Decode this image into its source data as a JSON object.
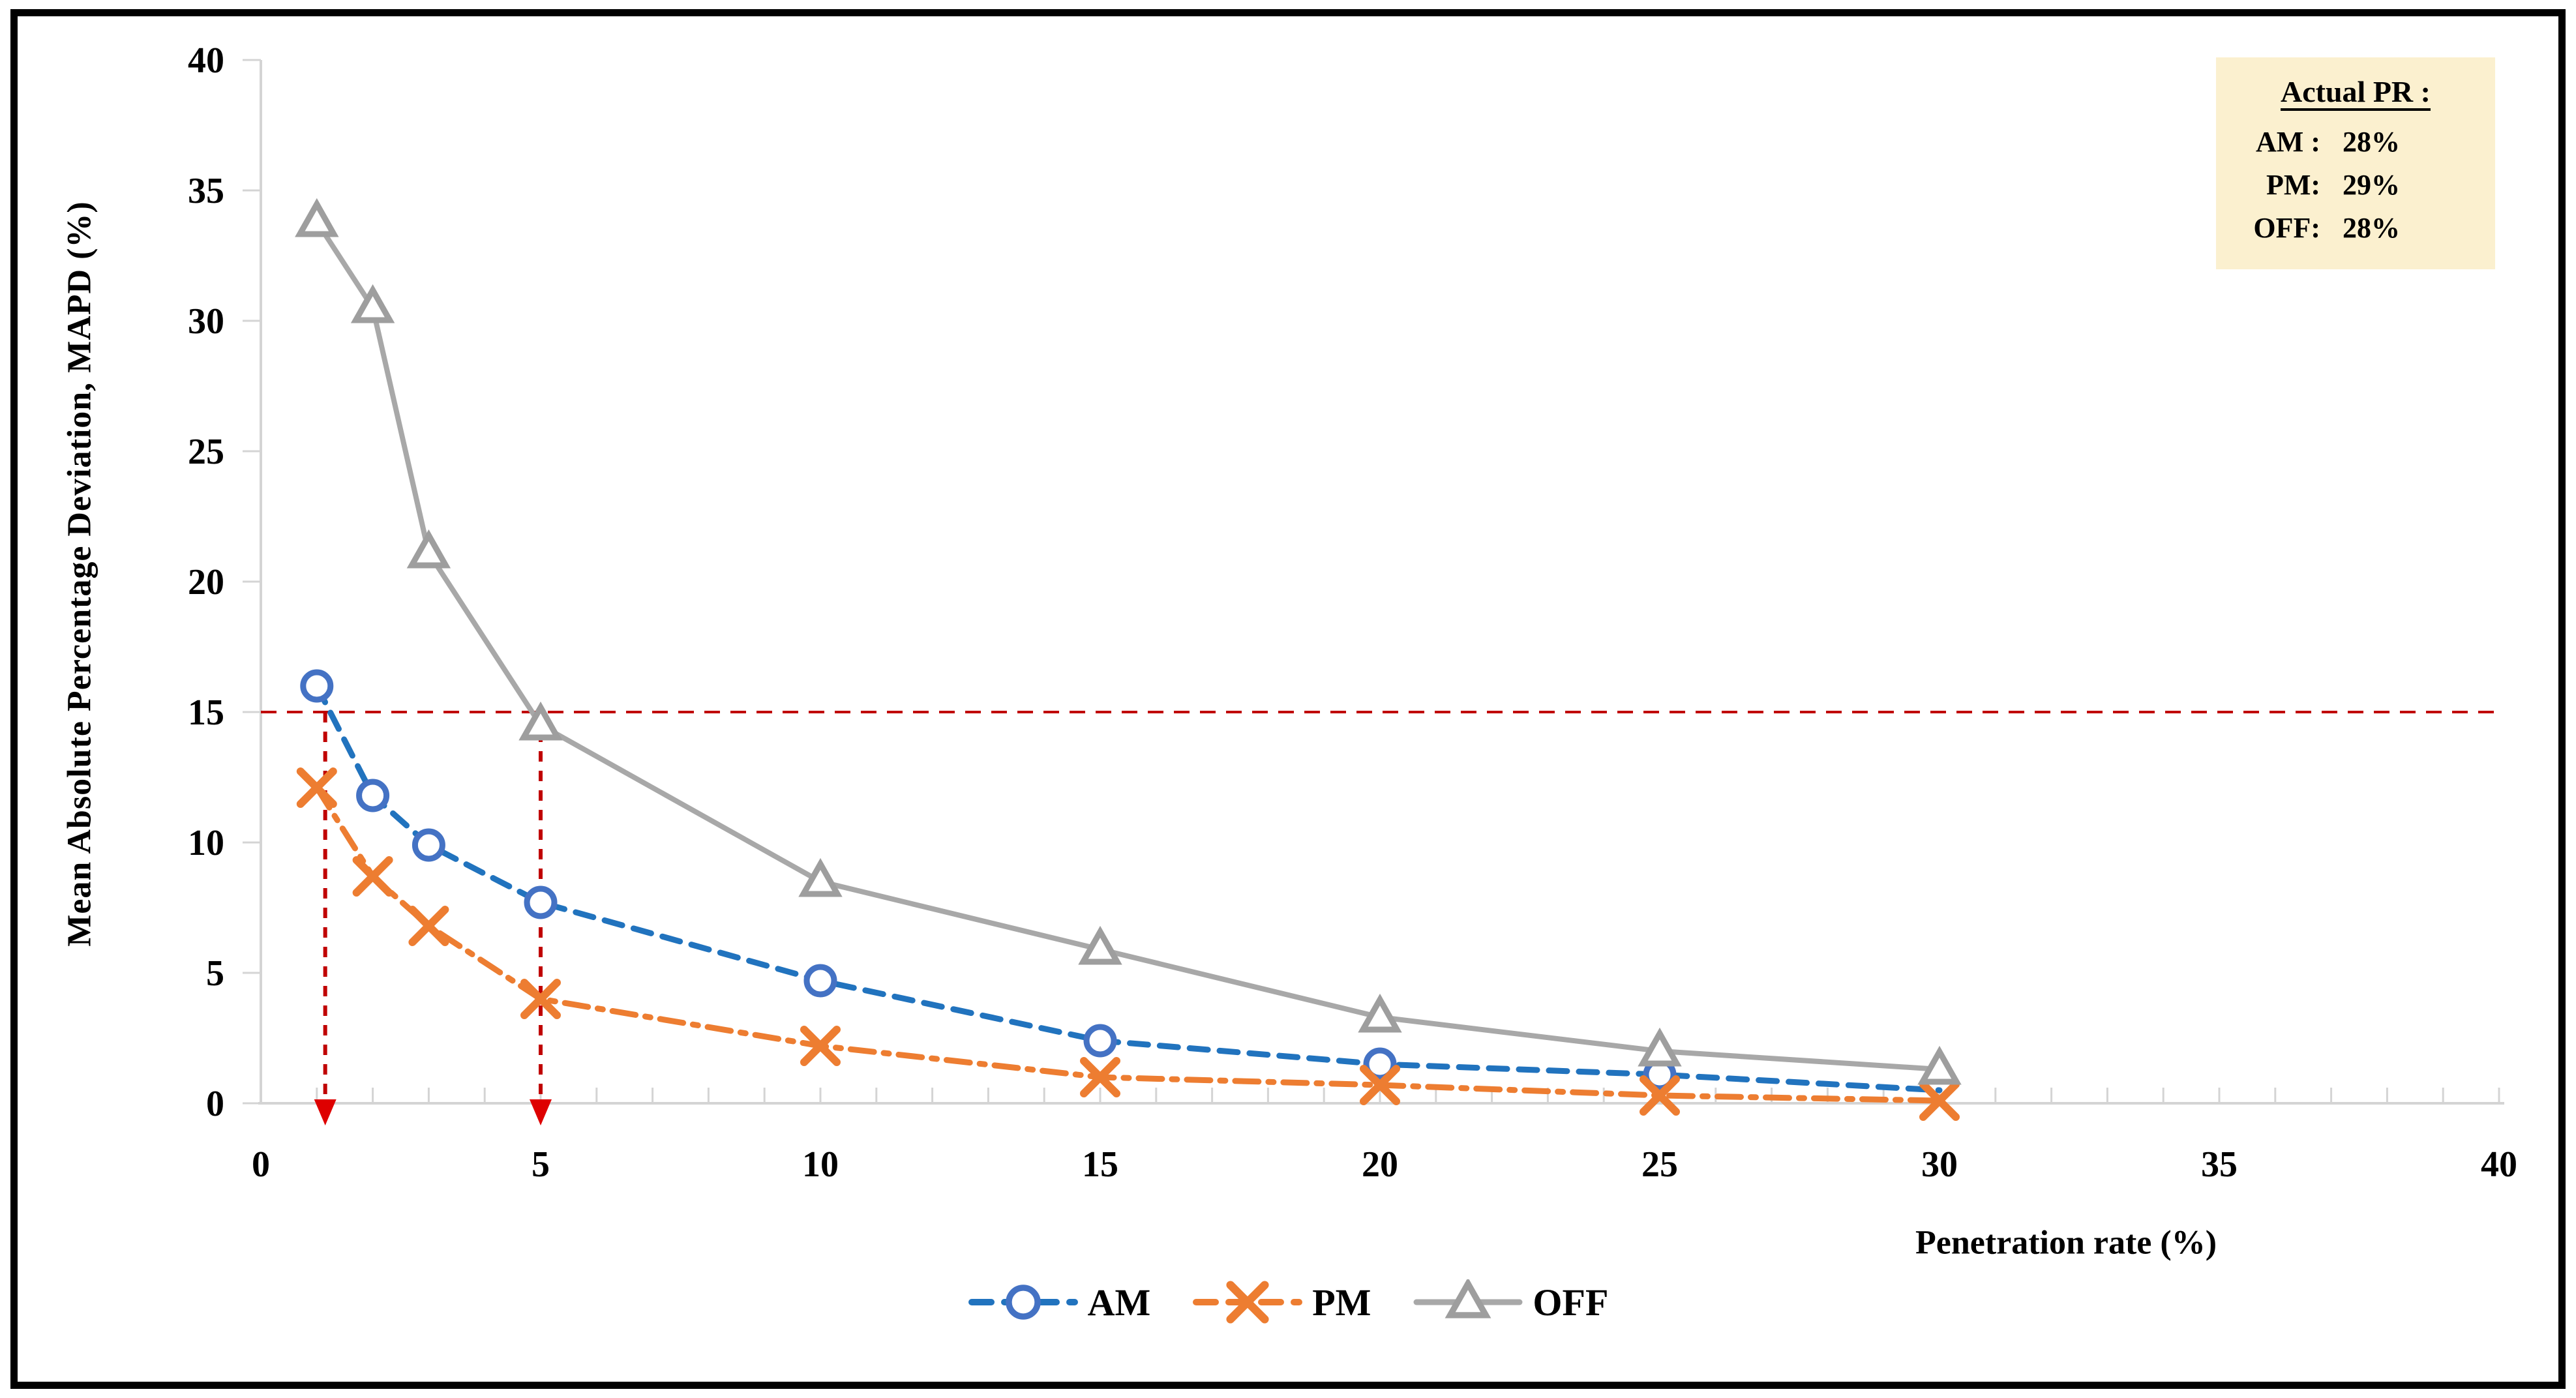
{
  "chart_data": {
    "type": "line",
    "title": "",
    "xlabel": "Penetration rate (%)",
    "ylabel": "Mean Absolute Percentage Deviation, MAPD (%)",
    "xlim": [
      0,
      40
    ],
    "ylim": [
      0,
      40
    ],
    "x_ticks": [
      0,
      5,
      10,
      15,
      20,
      25,
      30,
      35,
      40
    ],
    "y_ticks": [
      0,
      5,
      10,
      15,
      20,
      25,
      30,
      35,
      40
    ],
    "x_minor_tick_step": 1,
    "grid": false,
    "legend_position": "bottom-center",
    "x": [
      1,
      2,
      3,
      5,
      10,
      15,
      20,
      25,
      30
    ],
    "series": [
      {
        "name": "AM",
        "values": [
          16.0,
          11.8,
          9.9,
          7.7,
          4.7,
          2.4,
          1.5,
          1.1,
          0.5
        ],
        "color": "#2173BE",
        "marker_color": "#4472C4",
        "marker": "circle",
        "dash": "dashed",
        "last_marker_hidden": true
      },
      {
        "name": "PM",
        "values": [
          12.1,
          8.7,
          6.8,
          4.0,
          2.2,
          1.0,
          0.7,
          0.3,
          0.1
        ],
        "color": "#ED7D31",
        "marker_color": "#ED7D31",
        "marker": "x",
        "dash": "dashdot",
        "last_marker_hidden": false
      },
      {
        "name": "OFF",
        "values": [
          33.8,
          30.5,
          21.1,
          14.5,
          8.5,
          5.9,
          3.3,
          2.0,
          1.3
        ],
        "color": "#A8A8A8",
        "marker_color": "#9E9E9E",
        "marker": "triangle",
        "dash": "solid",
        "last_marker_hidden": false
      }
    ],
    "reference_lines": {
      "horizontal": {
        "y": 15,
        "color": "#C00000"
      },
      "vertical_arrows": [
        {
          "x": 1.15,
          "from_y": 15,
          "to_y": 0,
          "color": "#C00000"
        },
        {
          "x": 5.0,
          "from_y": 15,
          "to_y": 0,
          "color": "#C00000"
        }
      ]
    },
    "axis_color": "#D4D4D4"
  },
  "annotation": {
    "title": "Actual PR :",
    "rows": [
      {
        "label": "AM :",
        "value": "28%"
      },
      {
        "label": "PM:",
        "value": "29%"
      },
      {
        "label": "OFF:",
        "value": "28%"
      }
    ],
    "background": "#FBF0CF"
  },
  "legend": {
    "items": [
      "AM",
      "PM",
      "OFF"
    ]
  }
}
